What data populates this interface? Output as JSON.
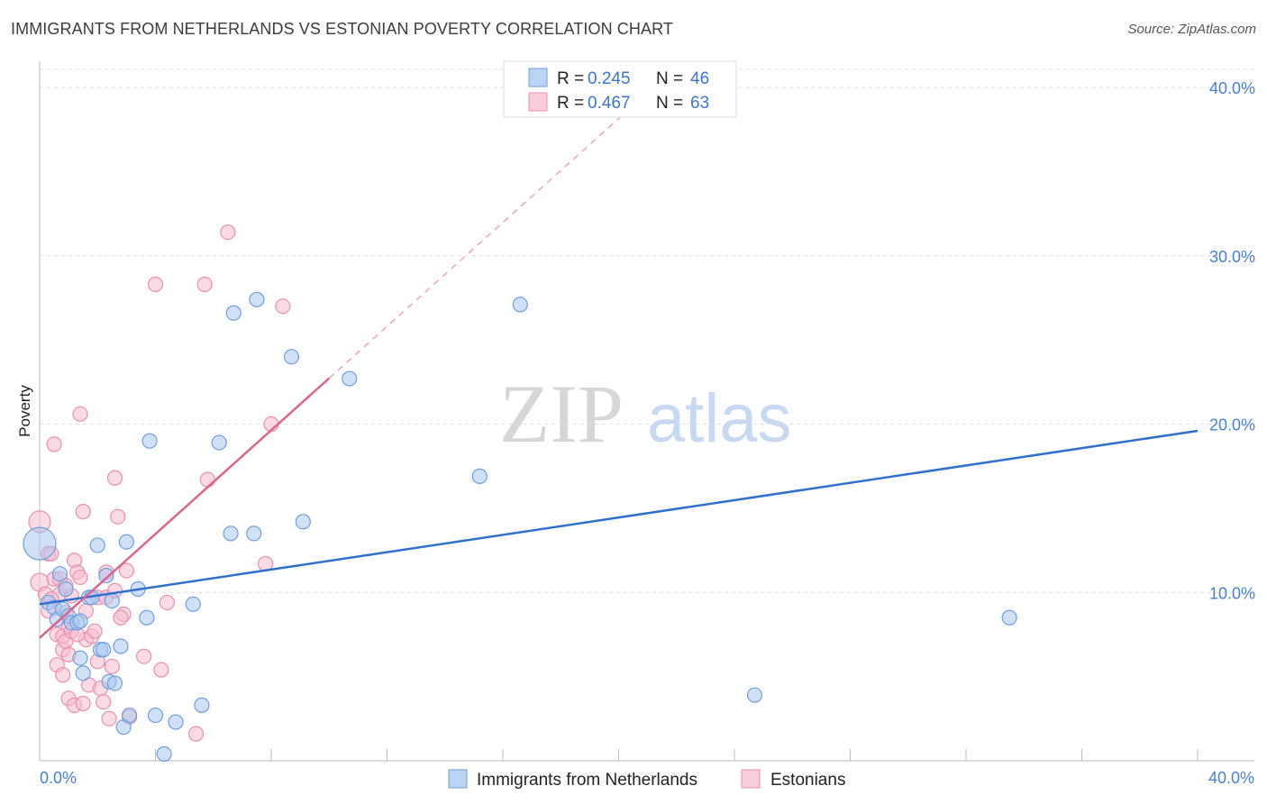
{
  "header": {
    "title": "IMMIGRANTS FROM NETHERLANDS VS ESTONIAN POVERTY CORRELATION CHART",
    "source": "Source: ZipAtlas.com"
  },
  "watermark": {
    "zip": "ZIP",
    "atlas": "atlas"
  },
  "colors": {
    "blue_fill": "#aac8f0",
    "blue_stroke": "#6f9fdc",
    "blue_line": "#2f6fd0",
    "pink_fill": "#f6bcd0",
    "pink_stroke": "#e990b0",
    "pink_line": "#e0608e",
    "tick": "#4a7fd4",
    "grid": "#dddddd"
  },
  "legend": {
    "rows": [
      {
        "r_label": "R = ",
        "r_value": "0.245",
        "n_label": "N = ",
        "n_value": "46",
        "series": "blue"
      },
      {
        "r_label": "R = ",
        "r_value": "0.467",
        "n_label": "N = ",
        "n_value": "63",
        "series": "pink"
      }
    ]
  },
  "chart_data": {
    "type": "scatter",
    "title": "IMMIGRANTS FROM NETHERLANDS VS ESTONIAN POVERTY CORRELATION CHART",
    "xlabel": "",
    "ylabel": "Poverty",
    "xlim": [
      0,
      42
    ],
    "ylim": [
      0,
      40.8
    ],
    "x_tick_labels": [
      "0.0%",
      "40.0%"
    ],
    "y_ticks": [
      10,
      20,
      30,
      40
    ],
    "y_tick_labels": [
      "10.0%",
      "20.0%",
      "30.0%",
      "40.0%"
    ],
    "grid": true,
    "series": [
      {
        "name": "Immigrants from Netherlands",
        "color": "blue",
        "R": 0.245,
        "N": 46,
        "trend": {
          "x0": 0,
          "y0": 9.3,
          "x1": 40,
          "y1": 19.6,
          "solid_to": 40
        },
        "points": [
          [
            0,
            12.9,
            18
          ],
          [
            0.3,
            9.4,
            8
          ],
          [
            0.5,
            9.1,
            8
          ],
          [
            0.6,
            8.4,
            8
          ],
          [
            0.7,
            11.1,
            8
          ],
          [
            0.8,
            9.0,
            8
          ],
          [
            0.9,
            10.2,
            8
          ],
          [
            1.0,
            8.6,
            8
          ],
          [
            1.1,
            8.2,
            8
          ],
          [
            1.3,
            8.2,
            8
          ],
          [
            1.4,
            6.1,
            8
          ],
          [
            1.5,
            5.2,
            8
          ],
          [
            1.7,
            9.7,
            8
          ],
          [
            1.8,
            9.7,
            8
          ],
          [
            2.0,
            12.8,
            8
          ],
          [
            2.1,
            6.6,
            8
          ],
          [
            2.2,
            6.6,
            8
          ],
          [
            2.3,
            11.0,
            8
          ],
          [
            2.4,
            4.7,
            8
          ],
          [
            2.5,
            9.5,
            8
          ],
          [
            2.6,
            4.6,
            8
          ],
          [
            2.8,
            6.8,
            8
          ],
          [
            2.9,
            2.0,
            8
          ],
          [
            3.0,
            13.0,
            8
          ],
          [
            3.1,
            2.7,
            8
          ],
          [
            3.4,
            10.2,
            8
          ],
          [
            3.7,
            8.5,
            8
          ],
          [
            3.8,
            19.0,
            8
          ],
          [
            4.0,
            2.7,
            8
          ],
          [
            4.3,
            0.4,
            8
          ],
          [
            4.7,
            2.3,
            8
          ],
          [
            5.3,
            9.3,
            8
          ],
          [
            5.6,
            3.3,
            8
          ],
          [
            6.2,
            18.9,
            8
          ],
          [
            6.6,
            13.5,
            8
          ],
          [
            6.7,
            26.6,
            8
          ],
          [
            7.4,
            13.5,
            8
          ],
          [
            7.5,
            27.4,
            8
          ],
          [
            8.7,
            24.0,
            8
          ],
          [
            9.1,
            14.2,
            8
          ],
          [
            10.7,
            22.7,
            8
          ],
          [
            15.2,
            16.9,
            8
          ],
          [
            16.6,
            27.1,
            8
          ],
          [
            24.7,
            3.9,
            8
          ],
          [
            33.5,
            8.5,
            8
          ],
          [
            1.4,
            8.3,
            8
          ]
        ]
      },
      {
        "name": "Estonians",
        "color": "pink",
        "R": 0.467,
        "N": 63,
        "trend": {
          "x0": 0,
          "y0": 7.3,
          "x1": 21.2,
          "y1": 40.0,
          "solid_to": 10.0
        },
        "points": [
          [
            0,
            14.2,
            12
          ],
          [
            0,
            10.6,
            10
          ],
          [
            0.2,
            9.9,
            8
          ],
          [
            0.3,
            8.9,
            8
          ],
          [
            0.3,
            12.3,
            8
          ],
          [
            0.4,
            12.3,
            8
          ],
          [
            0.5,
            10.8,
            8
          ],
          [
            0.5,
            18.8,
            8
          ],
          [
            0.6,
            5.7,
            8
          ],
          [
            0.6,
            7.5,
            8
          ],
          [
            0.7,
            9.9,
            8
          ],
          [
            0.7,
            10.8,
            8
          ],
          [
            0.8,
            7.4,
            8
          ],
          [
            0.8,
            6.6,
            8
          ],
          [
            0.8,
            5.1,
            8
          ],
          [
            0.9,
            7.1,
            8
          ],
          [
            0.9,
            8.8,
            8
          ],
          [
            1.0,
            6.3,
            8
          ],
          [
            1.0,
            3.7,
            8
          ],
          [
            1.0,
            8.0,
            8
          ],
          [
            1.1,
            7.7,
            8
          ],
          [
            1.1,
            9.8,
            8
          ],
          [
            1.2,
            11.9,
            8
          ],
          [
            1.2,
            3.3,
            8
          ],
          [
            1.3,
            11.2,
            8
          ],
          [
            1.4,
            20.6,
            8
          ],
          [
            1.4,
            10.9,
            8
          ],
          [
            1.5,
            14.8,
            8
          ],
          [
            1.5,
            3.4,
            8
          ],
          [
            1.6,
            7.2,
            8
          ],
          [
            1.6,
            8.9,
            8
          ],
          [
            1.7,
            4.5,
            8
          ],
          [
            1.8,
            7.4,
            8
          ],
          [
            1.9,
            7.7,
            8
          ],
          [
            2.0,
            9.7,
            8
          ],
          [
            2.0,
            5.9,
            8
          ],
          [
            2.1,
            4.3,
            8
          ],
          [
            2.2,
            3.5,
            8
          ],
          [
            2.3,
            11.2,
            8
          ],
          [
            2.3,
            9.7,
            8
          ],
          [
            2.4,
            2.5,
            8
          ],
          [
            2.5,
            5.6,
            8
          ],
          [
            2.6,
            10.1,
            8
          ],
          [
            2.6,
            16.8,
            8
          ],
          [
            2.7,
            14.5,
            8
          ],
          [
            2.9,
            8.7,
            8
          ],
          [
            3.0,
            11.3,
            8
          ],
          [
            3.1,
            2.6,
            8
          ],
          [
            3.6,
            6.2,
            8
          ],
          [
            4.0,
            28.3,
            8
          ],
          [
            4.2,
            5.4,
            8
          ],
          [
            4.4,
            9.4,
            8
          ],
          [
            5.4,
            1.6,
            8
          ],
          [
            5.7,
            28.3,
            8
          ],
          [
            5.8,
            16.7,
            8
          ],
          [
            6.5,
            31.4,
            8
          ],
          [
            7.8,
            11.7,
            8
          ],
          [
            8.0,
            20.0,
            8
          ],
          [
            8.4,
            27.0,
            8
          ],
          [
            0.4,
            9.6,
            8
          ],
          [
            0.9,
            10.4,
            8
          ],
          [
            1.3,
            7.5,
            8
          ],
          [
            2.8,
            8.5,
            8
          ]
        ]
      }
    ]
  },
  "bottom_legend": {
    "items": [
      {
        "label": "Immigrants from Netherlands",
        "series": "blue"
      },
      {
        "label": "Estonians",
        "series": "pink"
      }
    ]
  }
}
